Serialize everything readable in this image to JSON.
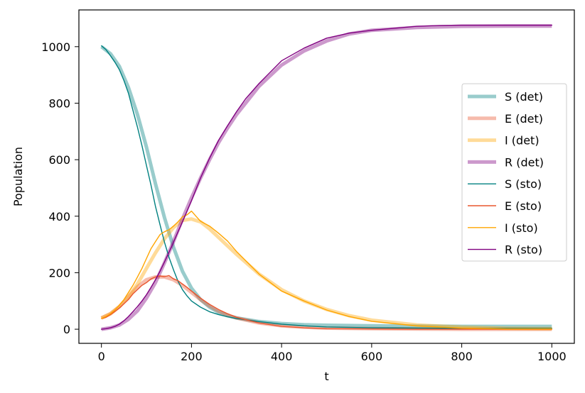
{
  "chart_data": {
    "type": "line",
    "title": "",
    "xlabel": "t",
    "ylabel": "Population",
    "xlim": [
      -50,
      1050
    ],
    "ylim": [
      -50,
      1130
    ],
    "xticks": [
      0,
      200,
      400,
      600,
      800,
      1000
    ],
    "yticks": [
      0,
      200,
      400,
      600,
      800,
      1000
    ],
    "grid": false,
    "legend_position": "center-right",
    "series": [
      {
        "name": "S (det)",
        "style": "det",
        "color": "#008080",
        "x": [
          0,
          20,
          40,
          60,
          80,
          100,
          120,
          140,
          160,
          180,
          200,
          220,
          240,
          260,
          280,
          300,
          350,
          400,
          450,
          500,
          600,
          700,
          800,
          900,
          1000
        ],
        "y": [
          1000,
          975,
          930,
          855,
          760,
          645,
          515,
          395,
          290,
          205,
          145,
          105,
          78,
          60,
          48,
          40,
          27,
          20,
          16,
          14,
          12,
          11,
          10,
          10,
          10
        ]
      },
      {
        "name": "E (det)",
        "style": "det",
        "color": "#e9562f",
        "x": [
          0,
          20,
          40,
          60,
          80,
          100,
          120,
          140,
          160,
          180,
          200,
          220,
          240,
          260,
          280,
          300,
          350,
          400,
          450,
          500,
          600,
          700,
          800,
          900,
          1000
        ],
        "y": [
          40,
          55,
          80,
          115,
          150,
          175,
          185,
          185,
          175,
          155,
          130,
          105,
          82,
          64,
          50,
          40,
          22,
          12,
          7,
          4,
          2,
          1,
          0,
          0,
          0
        ]
      },
      {
        "name": "I (det)",
        "style": "det",
        "color": "#ffa500",
        "x": [
          0,
          20,
          40,
          60,
          80,
          100,
          120,
          140,
          160,
          180,
          200,
          220,
          240,
          260,
          280,
          300,
          350,
          400,
          450,
          500,
          550,
          600,
          700,
          800,
          900,
          1000
        ],
        "y": [
          40,
          55,
          80,
          115,
          160,
          215,
          270,
          320,
          360,
          385,
          390,
          380,
          355,
          325,
          295,
          265,
          195,
          140,
          100,
          70,
          48,
          32,
          15,
          7,
          3,
          2
        ]
      },
      {
        "name": "R (det)",
        "style": "det",
        "color": "#800080",
        "x": [
          0,
          20,
          40,
          60,
          80,
          100,
          120,
          140,
          160,
          180,
          200,
          220,
          240,
          260,
          280,
          300,
          350,
          400,
          450,
          500,
          550,
          600,
          700,
          800,
          900,
          1000
        ],
        "y": [
          0,
          5,
          15,
          35,
          65,
          110,
          165,
          235,
          310,
          390,
          465,
          535,
          600,
          660,
          712,
          760,
          860,
          935,
          985,
          1020,
          1045,
          1058,
          1068,
          1072,
          1073,
          1073
        ]
      },
      {
        "name": "S (sto)",
        "style": "sto",
        "color": "#008080",
        "x": [
          0,
          10,
          20,
          30,
          40,
          50,
          60,
          70,
          80,
          90,
          100,
          110,
          120,
          130,
          140,
          150,
          160,
          170,
          180,
          190,
          200,
          220,
          240,
          260,
          280,
          300,
          350,
          400,
          450,
          500,
          600,
          700,
          800,
          900,
          1000
        ],
        "y": [
          1003,
          990,
          968,
          945,
          918,
          880,
          835,
          775,
          715,
          650,
          580,
          510,
          435,
          370,
          308,
          255,
          210,
          170,
          140,
          118,
          100,
          78,
          62,
          52,
          44,
          38,
          27,
          18,
          12,
          8,
          5,
          4,
          3,
          3,
          3
        ]
      },
      {
        "name": "E (sto)",
        "style": "sto",
        "color": "#e9562f",
        "x": [
          0,
          10,
          20,
          30,
          40,
          50,
          60,
          70,
          80,
          90,
          100,
          110,
          120,
          130,
          140,
          150,
          160,
          170,
          180,
          190,
          200,
          220,
          240,
          260,
          280,
          300,
          350,
          400,
          450,
          500,
          600,
          700,
          800,
          900,
          1000
        ],
        "y": [
          38,
          42,
          52,
          63,
          75,
          90,
          105,
          125,
          140,
          155,
          165,
          178,
          185,
          188,
          186,
          190,
          178,
          172,
          160,
          148,
          135,
          110,
          88,
          70,
          55,
          42,
          22,
          10,
          5,
          2,
          1,
          0,
          0,
          0,
          0
        ]
      },
      {
        "name": "I (sto)",
        "style": "sto",
        "color": "#ffa500",
        "x": [
          0,
          10,
          20,
          30,
          40,
          50,
          60,
          70,
          80,
          90,
          100,
          110,
          120,
          130,
          140,
          150,
          160,
          170,
          180,
          190,
          200,
          210,
          220,
          240,
          260,
          280,
          300,
          350,
          400,
          450,
          500,
          550,
          600,
          700,
          800,
          900,
          1000
        ],
        "y": [
          38,
          45,
          55,
          68,
          85,
          105,
          130,
          155,
          185,
          215,
          250,
          285,
          310,
          335,
          345,
          352,
          365,
          380,
          398,
          405,
          418,
          400,
          382,
          365,
          340,
          312,
          275,
          195,
          135,
          100,
          68,
          45,
          28,
          12,
          4,
          1,
          1
        ]
      },
      {
        "name": "R (sto)",
        "style": "sto",
        "color": "#800080",
        "x": [
          0,
          10,
          20,
          30,
          40,
          50,
          60,
          70,
          80,
          90,
          100,
          110,
          120,
          130,
          140,
          150,
          160,
          170,
          180,
          190,
          200,
          220,
          240,
          260,
          280,
          300,
          320,
          350,
          400,
          450,
          500,
          550,
          600,
          650,
          700,
          750,
          800,
          900,
          1000
        ],
        "y": [
          0,
          2,
          5,
          10,
          18,
          30,
          45,
          62,
          80,
          100,
          122,
          148,
          175,
          205,
          238,
          272,
          308,
          345,
          380,
          418,
          455,
          535,
          605,
          668,
          720,
          770,
          815,
          870,
          950,
          995,
          1030,
          1048,
          1058,
          1065,
          1072,
          1075,
          1076,
          1076,
          1076
        ]
      }
    ]
  }
}
